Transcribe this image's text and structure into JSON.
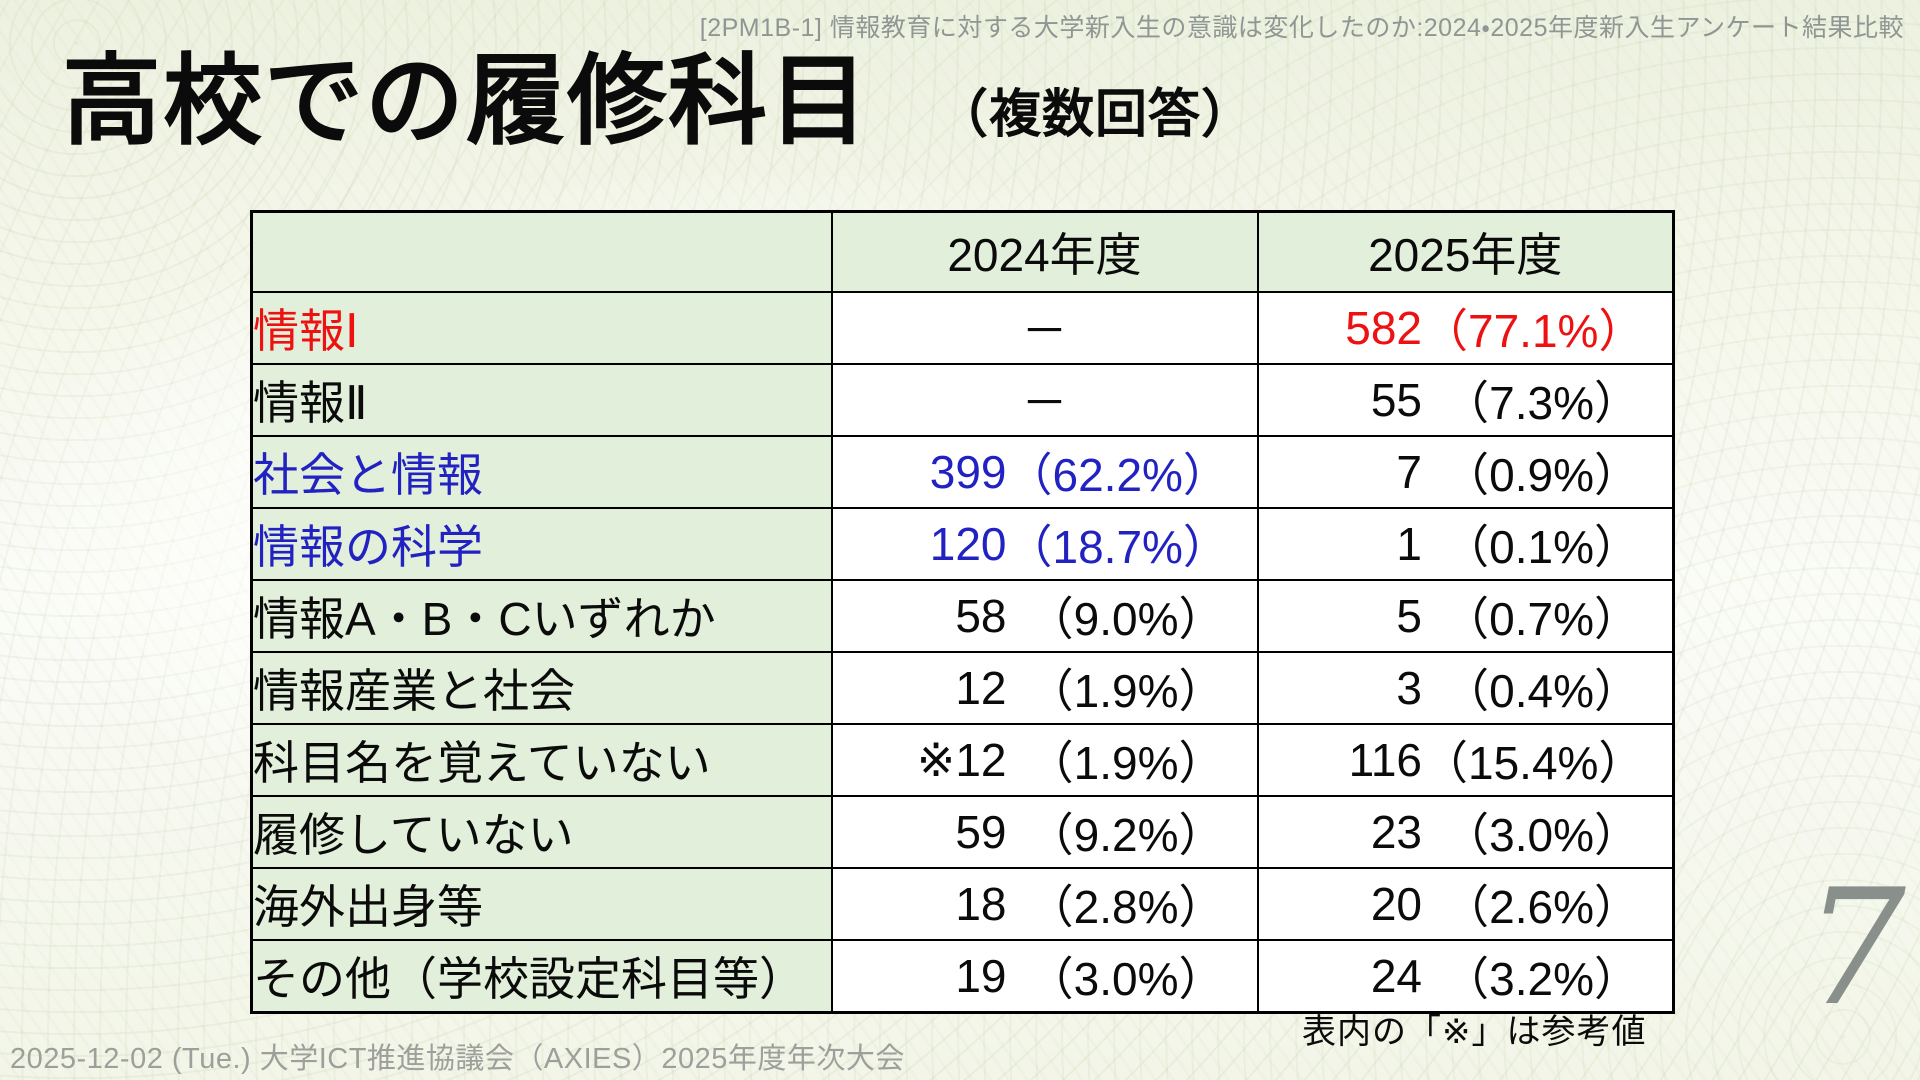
{
  "slide": {
    "session_header": "[2PM1B-1] 情報教育に対する大学新入生の意識は変化したのか:2024・2025年度新入生アンケート結果比較",
    "title": "高校での履修科目",
    "subtitle": "（複数回答）",
    "table_note": "表内の「※」は参考値",
    "footer": "2025-12-02 (Tue.) 大学ICT推進協議会（AXIES）2025年度年次大会",
    "page_number": "7"
  },
  "colors": {
    "highlight_red": "#ee1111",
    "highlight_blue": "#2222c2",
    "cell_green": "#e2efda",
    "text_black": "#0b0b0b",
    "muted_gray": "#9d9f9b"
  },
  "table": {
    "col_headers": [
      "",
      "2024年度",
      "2025年度"
    ],
    "rows": [
      {
        "label": "情報Ⅰ",
        "label_color": "#ee1111",
        "y2024": {
          "dash": "－"
        },
        "y2025": {
          "count": "582",
          "pct": "（77.1%）",
          "color": "#ee1111"
        }
      },
      {
        "label": "情報Ⅱ",
        "y2024": {
          "dash": "－"
        },
        "y2025": {
          "count": "55",
          "pct": "（7.3%）"
        }
      },
      {
        "label": "社会と情報",
        "label_color": "#2222c2",
        "y2024": {
          "count": "399",
          "pct": "（62.2%）",
          "color": "#2222c2"
        },
        "y2025": {
          "count": "7",
          "pct": "（0.9%）"
        }
      },
      {
        "label": "情報の科学",
        "label_color": "#2222c2",
        "y2024": {
          "count": "120",
          "pct": "（18.7%）",
          "color": "#2222c2"
        },
        "y2025": {
          "count": "1",
          "pct": "（0.1%）"
        }
      },
      {
        "label": "情報A・B・Cいずれか",
        "y2024": {
          "count": "58",
          "pct": "（9.0%）"
        },
        "y2025": {
          "count": "5",
          "pct": "（0.7%）"
        }
      },
      {
        "label": "情報産業と社会",
        "y2024": {
          "count": "12",
          "pct": "（1.9%）"
        },
        "y2025": {
          "count": "3",
          "pct": "（0.4%）"
        }
      },
      {
        "label": "科目名を覚えていない",
        "y2024": {
          "count": "※12",
          "pct": "（1.9%）"
        },
        "y2025": {
          "count": "116",
          "pct": "（15.4%）"
        }
      },
      {
        "label": "履修していない",
        "y2024": {
          "count": "59",
          "pct": "（9.2%）"
        },
        "y2025": {
          "count": "23",
          "pct": "（3.0%）"
        }
      },
      {
        "label": "海外出身等",
        "y2024": {
          "count": "18",
          "pct": "（2.8%）"
        },
        "y2025": {
          "count": "20",
          "pct": "（2.6%）"
        }
      },
      {
        "label": "その他（学校設定科目等）",
        "y2024": {
          "count": "19",
          "pct": "（3.0%）"
        },
        "y2025": {
          "count": "24",
          "pct": "（3.2%）"
        }
      }
    ]
  },
  "chart_data": {
    "type": "table",
    "title": "高校での履修科目（複数回答）",
    "categories": [
      "情報Ⅰ",
      "情報Ⅱ",
      "社会と情報",
      "情報の科学",
      "情報A・B・Cいずれか",
      "情報産業と社会",
      "科目名を覚えていない",
      "履修していない",
      "海外出身等",
      "その他（学校設定科目等）"
    ],
    "series": [
      {
        "name": "2024年度",
        "counts": [
          null,
          null,
          399,
          120,
          58,
          12,
          12,
          59,
          18,
          19
        ],
        "percents": [
          null,
          null,
          62.2,
          18.7,
          9.0,
          1.9,
          1.9,
          9.2,
          2.8,
          3.0
        ]
      },
      {
        "name": "2025年度",
        "counts": [
          582,
          55,
          7,
          1,
          5,
          3,
          116,
          23,
          20,
          24
        ],
        "percents": [
          77.1,
          7.3,
          0.9,
          0.1,
          0.7,
          0.4,
          15.4,
          3.0,
          2.6,
          3.2
        ]
      }
    ]
  }
}
